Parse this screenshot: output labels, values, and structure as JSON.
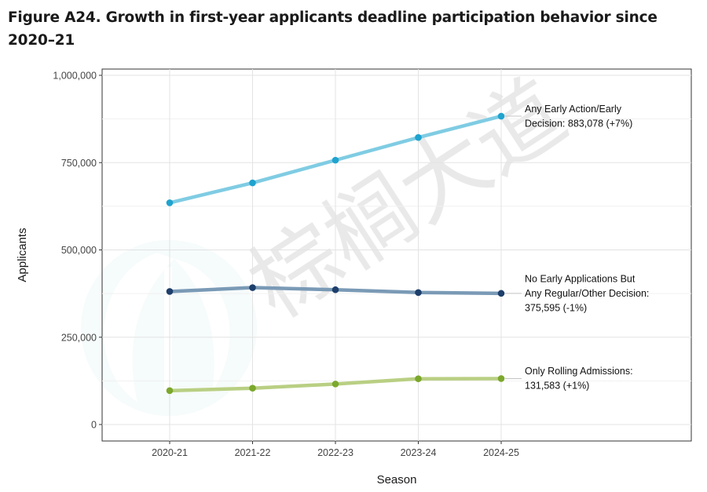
{
  "figure": {
    "title": "Figure A24. Growth in first-year applicants deadline participation behavior since 2020–21"
  },
  "watermark": {
    "text": "棕榈大道",
    "icon": "palm-leaf-logo-icon"
  },
  "chart_data": {
    "type": "line",
    "title": "Figure A24. Growth in first-year applicants deadline participation behavior since 2020–21",
    "xlabel": "Season",
    "ylabel": "Applicants",
    "categories": [
      "2020-21",
      "2021-22",
      "2022-23",
      "2023-24",
      "2024-25"
    ],
    "ylim": [
      -20000,
      1000000
    ],
    "yticks": [
      0,
      250000,
      500000,
      750000,
      1000000
    ],
    "ytick_labels": [
      "0",
      "250,000",
      "500,000",
      "750,000",
      "1,000,000"
    ],
    "grid": true,
    "series": [
      {
        "values": [
          635000,
          692000,
          757000,
          822000,
          883078
        ],
        "line_color": "#7fcce3",
        "point_color": "#1fa3cf",
        "label_lines": [
          "Any Early Action/Early",
          "Decision: 883,078 (+7%)"
        ]
      },
      {
        "values": [
          381000,
          392000,
          386000,
          378000,
          375595
        ],
        "line_color": "#7a9ab6",
        "point_color": "#1d3f6b",
        "label_lines": [
          "No Early Applications But",
          "Any Regular/Other Decision:",
          "375,595 (-1%)"
        ]
      },
      {
        "values": [
          97000,
          104000,
          116000,
          131000,
          131583
        ],
        "line_color": "#b9cf83",
        "point_color": "#7ba82c",
        "label_lines": [
          "Only Rolling Admissions:",
          "131,583 (+1%)"
        ]
      }
    ]
  }
}
